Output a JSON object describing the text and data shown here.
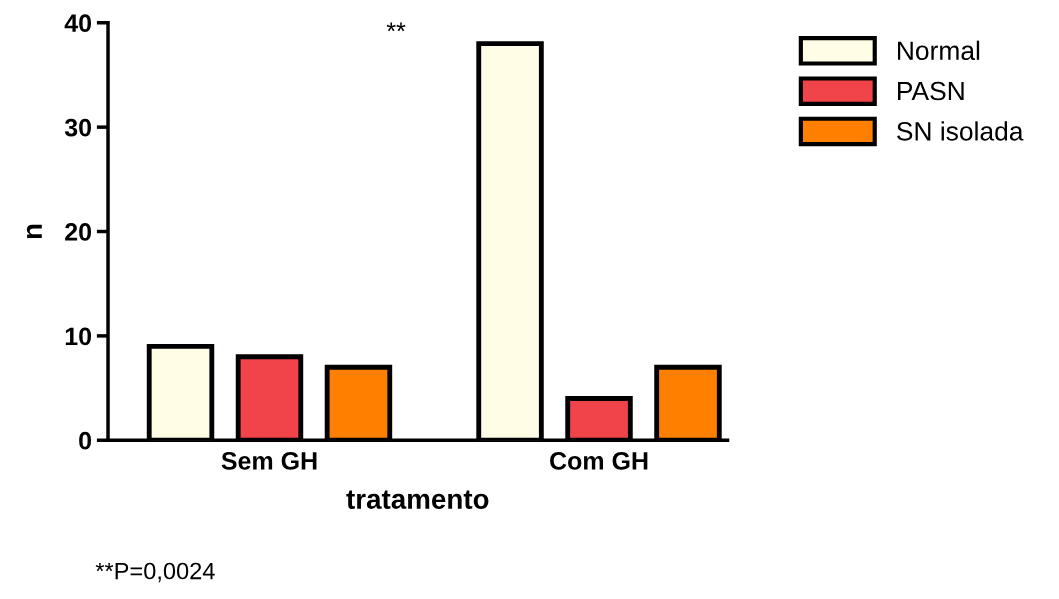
{
  "chart_data": {
    "type": "bar",
    "xlabel": "tratamento",
    "ylabel": "n",
    "categories": [
      "Sem GH",
      "Com GH"
    ],
    "series": [
      {
        "name": "Normal",
        "color": "#fffde6",
        "values": [
          9,
          38
        ]
      },
      {
        "name": "PASN",
        "color": "#f0444a",
        "values": [
          8,
          4
        ]
      },
      {
        "name": "SN isolada",
        "color": "#ff8000",
        "values": [
          7,
          7
        ]
      }
    ],
    "ylim": [
      0,
      40
    ],
    "yticks": [
      0,
      10,
      20,
      30,
      40
    ],
    "grid": false,
    "legend": "top right",
    "annotations": [
      "**",
      "**P=0,0024"
    ]
  }
}
